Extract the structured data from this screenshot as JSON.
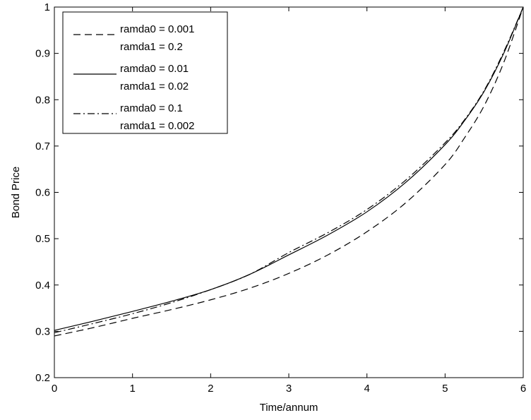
{
  "chart_data": {
    "type": "line",
    "title": "",
    "xlabel": "Time/annum",
    "ylabel": "Bond Price",
    "xlim": [
      0,
      6
    ],
    "ylim": [
      0.2,
      1
    ],
    "xticks": [
      "0",
      "1",
      "2",
      "3",
      "4",
      "5",
      "6"
    ],
    "yticks": [
      "0.2",
      "0.3",
      "0.4",
      "0.5",
      "0.6",
      "0.7",
      "0.8",
      "0.9",
      "1"
    ],
    "grid": false,
    "legend_position": "top-left",
    "series": [
      {
        "name_lines": [
          "ramda0 = 0.001",
          "ramda1 = 0.2"
        ],
        "style": "dashed",
        "x": [
          0,
          0.5,
          1,
          1.5,
          2,
          2.5,
          3,
          3.5,
          4,
          4.5,
          5,
          5.25,
          5.5,
          5.75,
          6
        ],
        "y": [
          0.29,
          0.308,
          0.328,
          0.347,
          0.368,
          0.393,
          0.425,
          0.465,
          0.515,
          0.578,
          0.66,
          0.718,
          0.787,
          0.88,
          1.0
        ]
      },
      {
        "name_lines": [
          "ramda0 = 0.01",
          "ramda1 = 0.02"
        ],
        "style": "solid",
        "x": [
          0,
          0.5,
          1,
          1.5,
          2,
          2.5,
          3,
          3.5,
          4,
          4.5,
          5,
          5.25,
          5.5,
          5.75,
          6
        ],
        "y": [
          0.302,
          0.322,
          0.343,
          0.365,
          0.39,
          0.423,
          0.465,
          0.508,
          0.558,
          0.622,
          0.703,
          0.755,
          0.818,
          0.9,
          1.0
        ]
      },
      {
        "name_lines": [
          "ramda0 = 0.1",
          "ramda1 = 0.002"
        ],
        "style": "dashdot",
        "x": [
          0,
          0.5,
          1,
          1.5,
          2,
          2.5,
          3,
          3.5,
          4,
          4.5,
          5,
          5.25,
          5.5,
          5.75,
          6
        ],
        "y": [
          0.297,
          0.317,
          0.338,
          0.362,
          0.39,
          0.423,
          0.47,
          0.513,
          0.563,
          0.627,
          0.707,
          0.757,
          0.82,
          0.903,
          1.0
        ]
      }
    ]
  }
}
